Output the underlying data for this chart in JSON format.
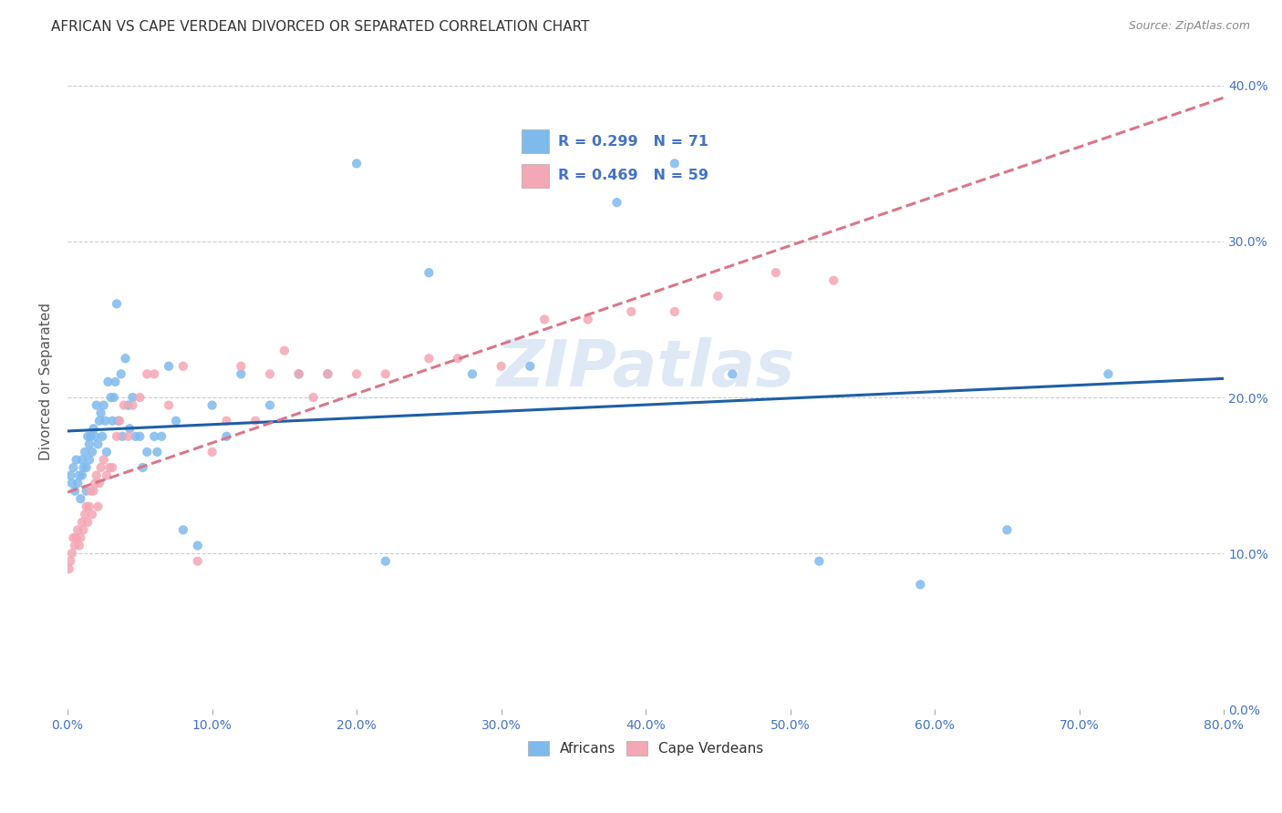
{
  "title": "AFRICAN VS CAPE VERDEAN DIVORCED OR SEPARATED CORRELATION CHART",
  "source": "Source: ZipAtlas.com",
  "ylabel": "Divorced or Separated",
  "xlim": [
    0.0,
    0.8
  ],
  "ylim": [
    0.0,
    0.42
  ],
  "watermark": "ZIPatlas",
  "africans_color": "#7fbaed",
  "capeverdeans_color": "#f4a7b5",
  "trend_african_color": "#1f5fa6",
  "trend_cape_color": "#d9768a",
  "africans_x": [
    0.002,
    0.003,
    0.004,
    0.005,
    0.006,
    0.007,
    0.008,
    0.009,
    0.01,
    0.01,
    0.011,
    0.012,
    0.013,
    0.013,
    0.014,
    0.015,
    0.015,
    0.016,
    0.017,
    0.018,
    0.019,
    0.02,
    0.021,
    0.022,
    0.023,
    0.024,
    0.025,
    0.026,
    0.027,
    0.028,
    0.03,
    0.031,
    0.032,
    0.033,
    0.034,
    0.035,
    0.037,
    0.038,
    0.04,
    0.042,
    0.043,
    0.045,
    0.047,
    0.05,
    0.052,
    0.055,
    0.06,
    0.062,
    0.065,
    0.07,
    0.075,
    0.08,
    0.09,
    0.1,
    0.11,
    0.12,
    0.14,
    0.16,
    0.18,
    0.2,
    0.22,
    0.25,
    0.28,
    0.32,
    0.38,
    0.42,
    0.46,
    0.52,
    0.59,
    0.65,
    0.72
  ],
  "africans_y": [
    0.15,
    0.145,
    0.155,
    0.14,
    0.16,
    0.145,
    0.15,
    0.135,
    0.15,
    0.16,
    0.155,
    0.165,
    0.14,
    0.155,
    0.175,
    0.16,
    0.17,
    0.175,
    0.165,
    0.18,
    0.175,
    0.195,
    0.17,
    0.185,
    0.19,
    0.175,
    0.195,
    0.185,
    0.165,
    0.21,
    0.2,
    0.185,
    0.2,
    0.21,
    0.26,
    0.185,
    0.215,
    0.175,
    0.225,
    0.195,
    0.18,
    0.2,
    0.175,
    0.175,
    0.155,
    0.165,
    0.175,
    0.165,
    0.175,
    0.22,
    0.185,
    0.115,
    0.105,
    0.195,
    0.175,
    0.215,
    0.195,
    0.215,
    0.215,
    0.35,
    0.095,
    0.28,
    0.215,
    0.22,
    0.325,
    0.35,
    0.215,
    0.095,
    0.08,
    0.115,
    0.215
  ],
  "capeverdeans_x": [
    0.001,
    0.002,
    0.003,
    0.004,
    0.005,
    0.006,
    0.007,
    0.008,
    0.009,
    0.01,
    0.011,
    0.012,
    0.013,
    0.014,
    0.015,
    0.016,
    0.017,
    0.018,
    0.019,
    0.02,
    0.021,
    0.022,
    0.023,
    0.025,
    0.027,
    0.029,
    0.031,
    0.034,
    0.036,
    0.039,
    0.042,
    0.045,
    0.05,
    0.055,
    0.06,
    0.07,
    0.08,
    0.09,
    0.1,
    0.11,
    0.12,
    0.13,
    0.14,
    0.15,
    0.16,
    0.17,
    0.18,
    0.2,
    0.22,
    0.25,
    0.27,
    0.3,
    0.33,
    0.36,
    0.39,
    0.42,
    0.45,
    0.49,
    0.53
  ],
  "capeverdeans_y": [
    0.09,
    0.095,
    0.1,
    0.11,
    0.105,
    0.11,
    0.115,
    0.105,
    0.11,
    0.12,
    0.115,
    0.125,
    0.13,
    0.12,
    0.13,
    0.14,
    0.125,
    0.14,
    0.145,
    0.15,
    0.13,
    0.145,
    0.155,
    0.16,
    0.15,
    0.155,
    0.155,
    0.175,
    0.185,
    0.195,
    0.175,
    0.195,
    0.2,
    0.215,
    0.215,
    0.195,
    0.22,
    0.095,
    0.165,
    0.185,
    0.22,
    0.185,
    0.215,
    0.23,
    0.215,
    0.2,
    0.215,
    0.215,
    0.215,
    0.225,
    0.225,
    0.22,
    0.25,
    0.25,
    0.255,
    0.255,
    0.265,
    0.28,
    0.275
  ]
}
